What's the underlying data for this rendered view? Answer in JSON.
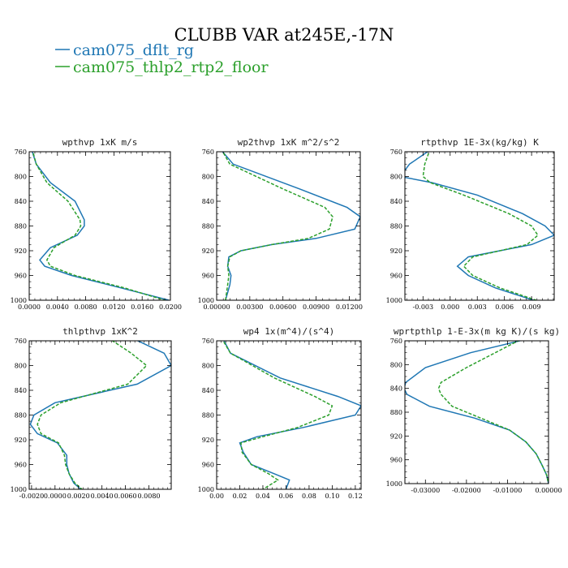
{
  "title": "CLUBB VAR at245E,-17N",
  "colors": {
    "s1": "#1f77b4",
    "s2": "#2ca02c"
  },
  "legend": [
    {
      "label": "cam075_dflt_rg",
      "color": "#1f77b4",
      "dash": false
    },
    {
      "label": "cam075_thlp2_rtp2_floor",
      "color": "#2ca02c",
      "dash": true
    }
  ],
  "chart_data": [
    {
      "type": "line",
      "title": "wpthvp   1xK m/s",
      "xlim": [
        0,
        0.02
      ],
      "ylim": [
        760,
        1000
      ],
      "y_inverted": true,
      "xticks": [
        "0.0000",
        "0.0040",
        "0.0080",
        "0.0120",
        "0.0160",
        "0.0200"
      ],
      "yticks": [
        "760",
        "800",
        "840",
        "880",
        "920",
        "960",
        "1000"
      ],
      "y": [
        755,
        780,
        810,
        840,
        870,
        880,
        895,
        915,
        935,
        945,
        960,
        980,
        1000
      ],
      "series": [
        {
          "name": "cam075_dflt_rg",
          "x": [
            0.0003,
            0.001,
            0.003,
            0.0065,
            0.0078,
            0.0078,
            0.0068,
            0.003,
            0.0015,
            0.0022,
            0.006,
            0.013,
            0.0198
          ]
        },
        {
          "name": "cam075_thlp2_rtp2_floor",
          "x": [
            0.0004,
            0.001,
            0.0025,
            0.0055,
            0.0072,
            0.0073,
            0.0065,
            0.0035,
            0.0025,
            0.003,
            0.0065,
            0.0135,
            0.0192
          ]
        }
      ]
    },
    {
      "type": "line",
      "title": "wp2thvp   1xK m^2/s^2",
      "xlim": [
        0,
        0.013
      ],
      "ylim": [
        760,
        1000
      ],
      "y_inverted": true,
      "xticks": [
        "0.00000",
        "0.00300",
        "0.00600",
        "0.00900",
        "0.01200"
      ],
      "yticks": [
        "760",
        "800",
        "840",
        "880",
        "920",
        "960",
        "1000"
      ],
      "y": [
        755,
        780,
        820,
        850,
        865,
        885,
        900,
        910,
        920,
        930,
        945,
        960,
        975,
        1000
      ],
      "series": [
        {
          "name": "cam075_dflt_rg",
          "x": [
            0.0003,
            0.0015,
            0.0075,
            0.0118,
            0.013,
            0.0125,
            0.009,
            0.005,
            0.0022,
            0.0011,
            0.001,
            0.0013,
            0.0012,
            0.0008
          ]
        },
        {
          "name": "cam075_thlp2_rtp2_floor",
          "x": [
            0.0004,
            0.0012,
            0.006,
            0.0098,
            0.0105,
            0.0102,
            0.0083,
            0.005,
            0.0022,
            0.0012,
            0.001,
            0.0011,
            0.001,
            0.0008
          ]
        }
      ]
    },
    {
      "type": "line",
      "title": "rtpthvp   1E-3x(kg/kg) K",
      "xlim": [
        -0.005,
        0.0115
      ],
      "ylim": [
        760,
        1000
      ],
      "y_inverted": true,
      "xticks": [
        "-0.003",
        "0.000",
        "0.003",
        "0.006",
        "0.009"
      ],
      "yticks": [
        "760",
        "800",
        "840",
        "880",
        "920",
        "960",
        "1000"
      ],
      "y": [
        755,
        780,
        800,
        810,
        830,
        860,
        880,
        895,
        910,
        930,
        945,
        960,
        980,
        1000
      ],
      "series": [
        {
          "name": "cam075_dflt_rg",
          "x": [
            -0.002,
            -0.0045,
            -0.0055,
            -0.002,
            0.003,
            0.008,
            0.0105,
            0.0115,
            0.009,
            0.002,
            0.0008,
            0.002,
            0.005,
            0.0092
          ]
        },
        {
          "name": "cam075_thlp2_rtp2_floor",
          "x": [
            -0.0022,
            -0.0028,
            -0.003,
            -0.0022,
            0.0015,
            0.0065,
            0.009,
            0.0097,
            0.0085,
            0.0025,
            0.0015,
            0.0025,
            0.0055,
            0.0095
          ]
        }
      ]
    },
    {
      "type": "line",
      "title": "thlpthvp   1xK^2",
      "xlim": [
        -0.0022,
        0.0099
      ],
      "ylim": [
        760,
        1000
      ],
      "y_inverted": true,
      "xticks": [
        "-0.0020",
        "0.0000",
        "0.0020",
        "0.0040",
        "0.0060",
        "0.0080"
      ],
      "yticks": [
        "760",
        "800",
        "840",
        "880",
        "920",
        "960",
        "1000"
      ],
      "y": [
        755,
        780,
        800,
        830,
        860,
        880,
        895,
        910,
        925,
        945,
        960,
        975,
        990,
        1000
      ],
      "series": [
        {
          "name": "cam075_dflt_rg",
          "x": [
            0.0065,
            0.0093,
            0.0099,
            0.007,
            0.0,
            -0.0018,
            -0.0021,
            -0.0015,
            0.0002,
            0.001,
            0.001,
            0.0012,
            0.0016,
            0.0022
          ]
        },
        {
          "name": "cam075_thlp2_rtp2_floor",
          "x": [
            0.0045,
            0.0065,
            0.0078,
            0.0062,
            0.0005,
            -0.0012,
            -0.0015,
            -0.0012,
            0.0003,
            0.0008,
            0.0009,
            0.0012,
            0.0017,
            0.0023
          ]
        }
      ]
    },
    {
      "type": "line",
      "title": "wp4   1x(m^4)/(s^4)",
      "xlim": [
        0,
        0.125
      ],
      "ylim": [
        760,
        1000
      ],
      "y_inverted": true,
      "xticks": [
        "0.00",
        "0.02",
        "0.04",
        "0.06",
        "0.08",
        "0.10",
        "0.12"
      ],
      "yticks": [
        "760",
        "800",
        "840",
        "880",
        "920",
        "960",
        "1000"
      ],
      "y": [
        755,
        780,
        820,
        850,
        865,
        880,
        900,
        915,
        925,
        940,
        960,
        975,
        985,
        1000
      ],
      "series": [
        {
          "name": "cam075_dflt_rg",
          "x": [
            0.005,
            0.012,
            0.055,
            0.105,
            0.125,
            0.12,
            0.075,
            0.035,
            0.02,
            0.023,
            0.03,
            0.05,
            0.063,
            0.06
          ]
        },
        {
          "name": "cam075_thlp2_rtp2_floor",
          "x": [
            0.004,
            0.012,
            0.05,
            0.085,
            0.1,
            0.097,
            0.07,
            0.04,
            0.021,
            0.022,
            0.03,
            0.045,
            0.053,
            0.04
          ]
        }
      ]
    },
    {
      "type": "line",
      "title": "wprtpthlp   1-E-3x(m kg K)/(s kg)",
      "xlim": [
        -0.035,
        0.0
      ],
      "ylim": [
        760,
        1000
      ],
      "y_inverted": true,
      "xticks": [
        "-0.03000",
        "-0.02000",
        "-0.01000",
        "0.00000"
      ],
      "yticks": [
        "760",
        "800",
        "840",
        "880",
        "920",
        "960",
        "1000"
      ],
      "y": [
        755,
        780,
        805,
        830,
        840,
        850,
        870,
        890,
        910,
        930,
        950,
        970,
        985,
        1000
      ],
      "series": [
        {
          "name": "cam075_dflt_rg",
          "x": [
            -0.004,
            -0.019,
            -0.03,
            -0.0348,
            -0.0352,
            -0.0345,
            -0.029,
            -0.018,
            -0.0095,
            -0.0055,
            -0.003,
            -0.0015,
            -0.0005,
            0.0
          ]
        },
        {
          "name": "cam075_thlp2_rtp2_floor",
          "x": [
            -0.006,
            -0.013,
            -0.02,
            -0.0262,
            -0.0268,
            -0.0262,
            -0.0235,
            -0.0165,
            -0.0095,
            -0.0055,
            -0.003,
            -0.0015,
            -0.0005,
            0.0
          ]
        }
      ]
    }
  ]
}
